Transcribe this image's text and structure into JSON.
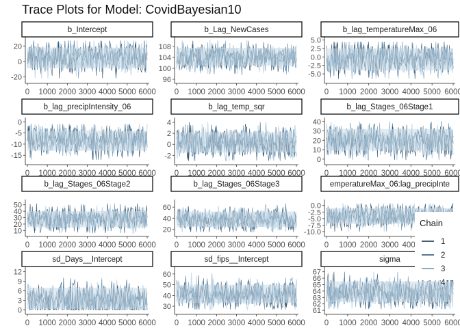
{
  "title": "Trace Plots for Model: CovidBayesian10",
  "legend": {
    "title": "Chain",
    "placement": "right",
    "entries": [
      "1",
      "2",
      "3",
      "4"
    ]
  },
  "colors": {
    "chain1": "#0b2a43",
    "chain2": "#1c4c74",
    "chain3": "#5e8fb5",
    "chain4": "#c9dbe8",
    "strip_fill": "#ffffff",
    "strip_border": "#111111",
    "axis_text": "#4d4d4d"
  },
  "chart_data": [
    {
      "type": "line",
      "title": "b_Intercept",
      "xlim": [
        0,
        6000
      ],
      "x_ticks": [
        "0",
        "1000",
        "2000",
        "3000",
        "4000",
        "5000",
        "6000"
      ],
      "ylim": [
        -25,
        30
      ],
      "y_ticks": [
        -20,
        0,
        20
      ],
      "series": [
        {
          "name": "1"
        },
        {
          "name": "2"
        },
        {
          "name": "3"
        },
        {
          "name": "4"
        }
      ],
      "trace": {
        "mean": 5,
        "band": [
          -9,
          18
        ],
        "range": [
          -22,
          27
        ]
      }
    },
    {
      "type": "line",
      "title": "b_Lag_NewCases",
      "xlim": [
        0,
        6000
      ],
      "x_ticks": [
        "0",
        "1000",
        "2000",
        "3000",
        "4000",
        "5000",
        "6000"
      ],
      "ylim": [
        95.5,
        111
      ],
      "y_ticks": [
        96,
        100,
        104,
        108
      ],
      "series": [
        {
          "name": "1"
        },
        {
          "name": "2"
        },
        {
          "name": "3"
        },
        {
          "name": "4"
        }
      ],
      "trace": {
        "mean": 104,
        "band": [
          101,
          107.5
        ],
        "range": [
          97.5,
          110.5
        ]
      }
    },
    {
      "type": "line",
      "title": "b_lag_temperatureMax_06",
      "xlim": [
        0,
        6000
      ],
      "x_ticks": [
        "0",
        "1000",
        "2000",
        "3000",
        "4000",
        "5000",
        "6000"
      ],
      "ylim": [
        -7,
        5.5
      ],
      "y_ticks": [
        -5.0,
        -2.5,
        0.0,
        2.5,
        5.0
      ],
      "series": [
        {
          "name": "1"
        },
        {
          "name": "2"
        },
        {
          "name": "3"
        },
        {
          "name": "4"
        }
      ],
      "trace": {
        "mean": -0.5,
        "band": [
          -4,
          2.5
        ],
        "range": [
          -6.5,
          4.5
        ]
      }
    },
    {
      "type": "line",
      "title": "b_lag_precipIntensity_06",
      "xlim": [
        0,
        6000
      ],
      "x_ticks": [
        "0",
        "1000",
        "2000",
        "3000",
        "4000",
        "5000",
        "6000"
      ],
      "ylim": [
        -18,
        1
      ],
      "y_ticks": [
        -15,
        -10,
        -5,
        0
      ],
      "series": [
        {
          "name": "1"
        },
        {
          "name": "2"
        },
        {
          "name": "3"
        },
        {
          "name": "4"
        }
      ],
      "trace": {
        "mean": -8,
        "band": [
          -13,
          -4
        ],
        "range": [
          -17,
          -1
        ]
      }
    },
    {
      "type": "line",
      "title": "b_lag_temp_sqr",
      "xlim": [
        0,
        6000
      ],
      "x_ticks": [
        "0",
        "1000",
        "2000",
        "3000",
        "4000",
        "5000",
        "6000"
      ],
      "ylim": [
        -3.2,
        4.5
      ],
      "y_ticks": [
        -2,
        0,
        2,
        4
      ],
      "series": [
        {
          "name": "1"
        },
        {
          "name": "2"
        },
        {
          "name": "3"
        },
        {
          "name": "4"
        }
      ],
      "trace": {
        "mean": 0.3,
        "band": [
          -1.5,
          2.2
        ],
        "range": [
          -3,
          4
        ]
      }
    },
    {
      "type": "line",
      "title": "b_lag_Stages_06Stage1",
      "xlim": [
        0,
        6000
      ],
      "x_ticks": [
        "0",
        "1000",
        "2000",
        "3000",
        "4000",
        "5000",
        "6000"
      ],
      "ylim": [
        -3,
        42
      ],
      "y_ticks": [
        0,
        10,
        20,
        30,
        40
      ],
      "series": [
        {
          "name": "1"
        },
        {
          "name": "2"
        },
        {
          "name": "3"
        },
        {
          "name": "4"
        }
      ],
      "trace": {
        "mean": 20,
        "band": [
          9,
          32
        ],
        "range": [
          -1,
          40
        ]
      }
    },
    {
      "type": "line",
      "title": "b_lag_Stages_06Stage2",
      "xlim": [
        0,
        6000
      ],
      "x_ticks": [
        "0",
        "1000",
        "2000",
        "3000",
        "4000",
        "5000",
        "6000"
      ],
      "ylim": [
        5,
        55
      ],
      "y_ticks": [
        10,
        20,
        30,
        40,
        50
      ],
      "series": [
        {
          "name": "1"
        },
        {
          "name": "2"
        },
        {
          "name": "3"
        },
        {
          "name": "4"
        }
      ],
      "trace": {
        "mean": 28,
        "band": [
          15,
          40
        ],
        "range": [
          6,
          52
        ]
      }
    },
    {
      "type": "line",
      "title": "b_lag_Stages_06Stage3",
      "xlim": [
        0,
        6000
      ],
      "x_ticks": [
        "0",
        "1000",
        "2000",
        "3000",
        "4000",
        "5000",
        "6000"
      ],
      "ylim": [
        12,
        70
      ],
      "y_ticks": [
        20,
        40,
        60
      ],
      "series": [
        {
          "name": "1"
        },
        {
          "name": "2"
        },
        {
          "name": "3"
        },
        {
          "name": "4"
        }
      ],
      "trace": {
        "mean": 38,
        "band": [
          24,
          52
        ],
        "range": [
          15,
          66
        ]
      }
    },
    {
      "type": "line",
      "title": "emperatureMax_06:lag_precipInte",
      "xlim": [
        0,
        6000
      ],
      "x_ticks": [
        "0",
        "1000",
        "2000",
        "3000",
        "4000",
        "5000",
        "6000"
      ],
      "ylim": [
        -10.8,
        1.5
      ],
      "y_ticks": [
        -10.0,
        -7.5,
        -5.0,
        -2.5,
        0.0
      ],
      "series": [
        {
          "name": "1"
        },
        {
          "name": "2"
        },
        {
          "name": "3"
        },
        {
          "name": "4"
        }
      ],
      "trace": {
        "mean": -4,
        "band": [
          -7,
          -1
        ],
        "range": [
          -10,
          0.8
        ]
      }
    },
    {
      "type": "line",
      "title": "sd_Days__Intercept",
      "xlim": [
        0,
        6000
      ],
      "x_ticks": [
        "0",
        "1000",
        "2000",
        "3000",
        "4000",
        "5000",
        "6000"
      ],
      "ylim": [
        -0.5,
        13
      ],
      "y_ticks": [
        0,
        3,
        6,
        9,
        12
      ],
      "series": [
        {
          "name": "1"
        },
        {
          "name": "2"
        },
        {
          "name": "3"
        },
        {
          "name": "4"
        }
      ],
      "trace": {
        "mean": 3,
        "band": [
          0.3,
          7
        ],
        "range": [
          0,
          12.5
        ]
      }
    },
    {
      "type": "line",
      "title": "sd_fips__Intercept",
      "xlim": [
        0,
        6000
      ],
      "x_ticks": [
        "0",
        "1000",
        "2000",
        "3000",
        "4000",
        "5000",
        "6000"
      ],
      "ylim": [
        25,
        65
      ],
      "y_ticks": [
        30,
        40,
        50,
        60
      ],
      "series": [
        {
          "name": "1"
        },
        {
          "name": "2"
        },
        {
          "name": "3"
        },
        {
          "name": "4"
        }
      ],
      "trace": {
        "mean": 41,
        "band": [
          33,
          50
        ],
        "range": [
          27,
          62
        ]
      }
    },
    {
      "type": "line",
      "title": "sigma",
      "xlim": [
        0,
        6000
      ],
      "x_ticks": [
        "0",
        "1000",
        "2000",
        "3000",
        "4000",
        "5000",
        "6000"
      ],
      "ylim": [
        60.8,
        67.5
      ],
      "y_ticks": [
        61,
        62,
        63,
        64,
        65,
        66,
        67
      ],
      "series": [
        {
          "name": "1"
        },
        {
          "name": "2"
        },
        {
          "name": "3"
        },
        {
          "name": "4"
        }
      ],
      "trace": {
        "mean": 63.8,
        "band": [
          62.3,
          65.5
        ],
        "range": [
          61.2,
          67
        ]
      }
    }
  ]
}
